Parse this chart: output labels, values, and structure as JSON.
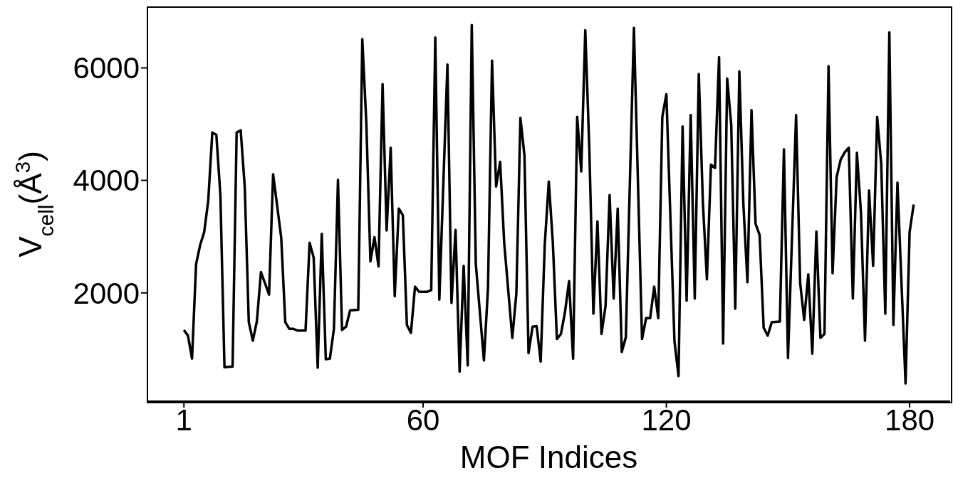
{
  "chart_data": {
    "type": "line",
    "xlabel": "MOF Indices",
    "ylabel": "V$_{cell}$(Å$^{3}$)",
    "line_style": "solid",
    "x": [
      1,
      2,
      3,
      4,
      5,
      6,
      7,
      8,
      9,
      10,
      11,
      13,
      14,
      15,
      16,
      17,
      18,
      19,
      20,
      22,
      23,
      25,
      26,
      27,
      28,
      29,
      31,
      32,
      33,
      34,
      35,
      36,
      37,
      38,
      39,
      40,
      41,
      42,
      44,
      45,
      46,
      47,
      48,
      49,
      50,
      51,
      52,
      53,
      54,
      55,
      56,
      57,
      58,
      59,
      61,
      62,
      63,
      64,
      66,
      67,
      68,
      69,
      70,
      71,
      72,
      73,
      75,
      76,
      77,
      78,
      79,
      80,
      82,
      83,
      84,
      85,
      86,
      87,
      88,
      89,
      90,
      91,
      92,
      93,
      94,
      95,
      96,
      97,
      98,
      99,
      100,
      101,
      102,
      103,
      104,
      105,
      106,
      107,
      108,
      109,
      110,
      112,
      114,
      115,
      116,
      117,
      118,
      119,
      120,
      122,
      123,
      124,
      125,
      126,
      127,
      128,
      129,
      130,
      131,
      132,
      133,
      134,
      135,
      136,
      137,
      138,
      139,
      140,
      141,
      142,
      143,
      144,
      145,
      146,
      148,
      149,
      150,
      152,
      153,
      154,
      155,
      156,
      157,
      158,
      159,
      160,
      161,
      162,
      163,
      164,
      165,
      166,
      167,
      168,
      169,
      170,
      171,
      172,
      173,
      174,
      175,
      176,
      177,
      179,
      180,
      181
    ],
    "series": [
      {
        "color": "#000000",
        "values": [
          1340,
          1240,
          830,
          2510,
          2850,
          3080,
          3640,
          4850,
          4810,
          3730,
          680,
          690,
          4850,
          4890,
          3890,
          1480,
          1150,
          1500,
          2370,
          1970,
          4110,
          2980,
          1480,
          1360,
          1360,
          1330,
          1330,
          2890,
          2630,
          670,
          3050,
          820,
          830,
          1360,
          4010,
          1340,
          1400,
          1690,
          1700,
          6510,
          5010,
          2560,
          2990,
          2470,
          5710,
          3110,
          4580,
          1940,
          3500,
          3380,
          1430,
          1290,
          2110,
          2020,
          2020,
          2050,
          6540,
          1880,
          6060,
          1820,
          3120,
          600,
          2480,
          710,
          6760,
          2510,
          800,
          2080,
          6130,
          3890,
          4330,
          2890,
          1200,
          1990,
          5110,
          4440,
          930,
          1400,
          1410,
          780,
          2850,
          3980,
          2890,
          1180,
          1270,
          1660,
          2210,
          830,
          5130,
          4160,
          6670,
          4560,
          1630,
          3270,
          1270,
          1770,
          3740,
          1900,
          3500,
          950,
          1210,
          6710,
          1180,
          1550,
          1550,
          2110,
          1550,
          5130,
          5530,
          1140,
          520,
          4960,
          1860,
          5160,
          1900,
          5890,
          3620,
          2240,
          4280,
          4220,
          6190,
          1100,
          5810,
          4990,
          1720,
          5940,
          3570,
          2190,
          5250,
          3230,
          3030,
          1380,
          1240,
          1480,
          1490,
          4550,
          840,
          5160,
          2180,
          1520,
          2330,
          920,
          3090,
          1200,
          1270,
          6030,
          2350,
          4060,
          4370,
          4500,
          4580,
          1900,
          4490,
          3430,
          1150,
          3820,
          2480,
          5130,
          4290,
          1630,
          6630,
          1430,
          3960,
          390,
          3080,
          3570
        ]
      }
    ],
    "xlim": [
      -8,
      190
    ],
    "ylim": [
      75,
      7080
    ],
    "xticks": [
      1,
      60,
      120,
      180
    ],
    "yticks": [
      2000,
      4000,
      6000
    ]
  }
}
